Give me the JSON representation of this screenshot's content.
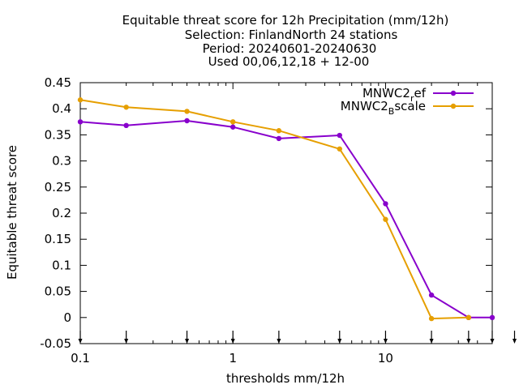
{
  "chart_data": {
    "type": "line",
    "title_lines": [
      "Equitable threat score  for 12h Precipitation (mm/12h)",
      "Selection: FinlandNorth     24 stations",
      "Period: 20240601-20240630",
      "Used 00,06,12,18 + 12-00"
    ],
    "xlabel": "thresholds mm/12h",
    "ylabel": "Equitable threat score",
    "x_scale": "log",
    "xlim": [
      0.1,
      50
    ],
    "ylim": [
      -0.05,
      0.45
    ],
    "x_ticks": [
      {
        "value": 0.1,
        "label": "0.1"
      },
      {
        "value": 1,
        "label": "1"
      },
      {
        "value": 10,
        "label": "10"
      }
    ],
    "y_ticks": [
      {
        "value": 0.45,
        "label": "0.45"
      },
      {
        "value": 0.4,
        "label": "0.4"
      },
      {
        "value": 0.35,
        "label": "0.35"
      },
      {
        "value": 0.3,
        "label": "0.3"
      },
      {
        "value": 0.25,
        "label": "0.25"
      },
      {
        "value": 0.2,
        "label": "0.2"
      },
      {
        "value": 0.15,
        "label": "0.15"
      },
      {
        "value": 0.1,
        "label": "0.1"
      },
      {
        "value": 0.05,
        "label": "0.05"
      },
      {
        "value": 0,
        "label": "0"
      },
      {
        "value": -0.05,
        "label": "-0.05"
      }
    ],
    "threshold_markers": [
      0.1,
      0.2,
      0.5,
      1,
      2,
      5,
      10,
      20,
      35,
      50,
      70
    ],
    "grid": false,
    "legend_position": "top-right",
    "series": [
      {
        "name": "MNWC2_ref",
        "legend_main": "MNWC2",
        "legend_sub": "r",
        "legend_rest": "ef",
        "color": "#8800cc",
        "x": [
          0.1,
          0.2,
          0.5,
          1,
          2,
          5,
          10,
          20,
          35,
          50
        ],
        "y": [
          0.375,
          0.368,
          0.377,
          0.365,
          0.343,
          0.349,
          0.218,
          0.043,
          0.0,
          0.0
        ]
      },
      {
        "name": "MNWC2_Bscale",
        "legend_main": "MNWC2",
        "legend_sub": "B",
        "legend_rest": "scale",
        "color": "#e69f00",
        "x": [
          0.1,
          0.2,
          0.5,
          1,
          2,
          5,
          10,
          20,
          35
        ],
        "y": [
          0.417,
          0.403,
          0.395,
          0.375,
          0.358,
          0.323,
          0.188,
          -0.002,
          0.0
        ]
      }
    ]
  }
}
